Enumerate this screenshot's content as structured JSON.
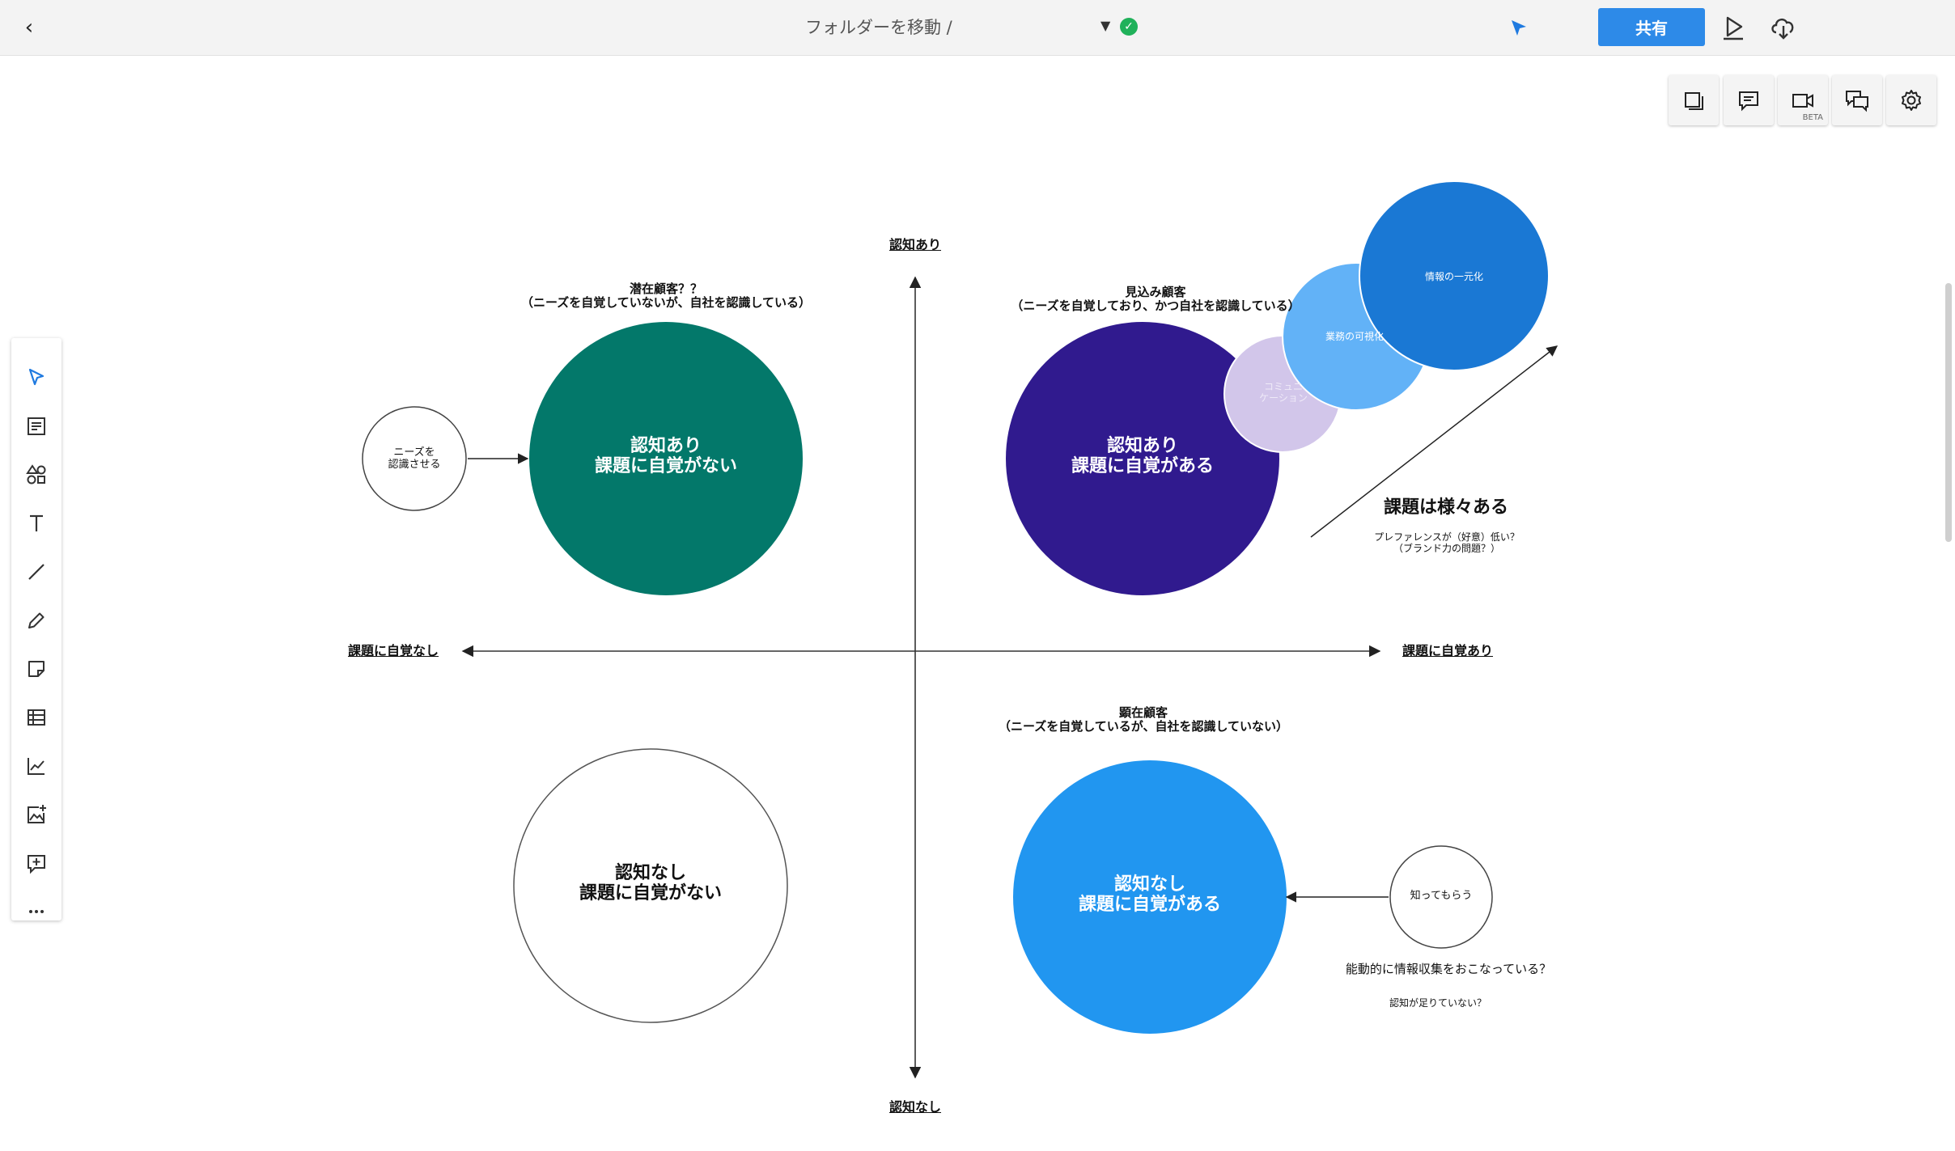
{
  "topbar": {
    "folder_link": "フォルダーを移動 /",
    "share_label": "共有"
  },
  "canvas": {
    "axis": {
      "top": "認知あり",
      "bottom": "認知なし",
      "left": "課題に自覚なし",
      "right": "課題に自覚あり"
    },
    "segments": {
      "top_left": {
        "title": "潜在顧客？？",
        "subtitle": "（ニーズを自覚していないが、自社を認識している）",
        "circle_line1": "認知あり",
        "circle_line2": "課題に自覚がない"
      },
      "top_right": {
        "title": "見込み顧客",
        "subtitle": "（ニーズを自覚しており、かつ自社を認識している）",
        "circle_line1": "認知あり",
        "circle_line2": "課題に自覚がある"
      },
      "bottom_left": {
        "circle_line1": "認知なし",
        "circle_line2": "課題に自覚がない"
      },
      "bottom_right": {
        "title": "顕在顧客",
        "subtitle": "（ニーズを自覚しているが、自社を認識していない）",
        "circle_line1": "認知なし",
        "circle_line2": "課題に自覚がある"
      }
    },
    "side_circles": {
      "needs_line1": "ニーズを",
      "needs_line2": "認識させる",
      "awareness": "知ってもらう"
    },
    "issue_bubbles": {
      "communication_line1": "コミュニ",
      "communication_line2": "ケーション",
      "visualization": "業務の可視化",
      "unification": "情報の一元化"
    },
    "notes": {
      "issues_title": "課題は様々ある",
      "preference_line1": "プレファレンスが（好意）低い？",
      "preference_line2": "（ブランド力の問題？）",
      "info_gathering": "能動的に情報収集をおこなっている？",
      "awareness_lacking": "認知が足りていない？"
    },
    "colors": {
      "teal": "#03786a",
      "indigo": "#301a8e",
      "blue": "#2196f0",
      "lavender": "#d2c6ea",
      "light_blue": "#62b2f7",
      "deep_blue": "#1a78d4"
    }
  },
  "panel": {
    "video_badge": "BETA"
  }
}
